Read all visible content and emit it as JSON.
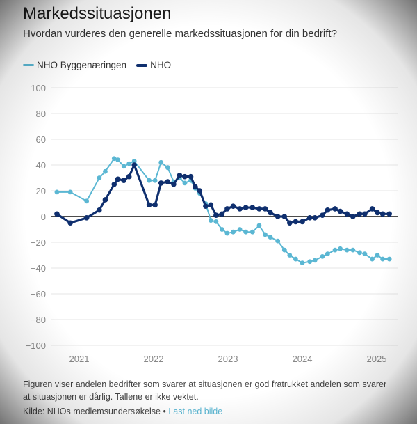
{
  "header": {
    "title": "Markedssituasjonen",
    "subtitle": "Hvordan vurderes den generelle markedssituasjonen for din bedrift?"
  },
  "footer": {
    "note": "Figuren viser andelen bedrifter som svarer at situasjonen er god fratrukket andelen som svarer at situasjonen er dårlig. Tallene er ikke vektet.",
    "source_label": "Kilde: NHOs medlemsundersøkelse",
    "separator": "•",
    "download_label": "Last ned bilde"
  },
  "chart_data": {
    "type": "line",
    "title": "Markedssituasjonen",
    "xlabel": "",
    "ylabel": "",
    "ylim": [
      -100,
      100
    ],
    "xlim": [
      2020.7,
      2025.25
    ],
    "yticks": [
      100,
      80,
      60,
      40,
      20,
      0,
      -20,
      -40,
      -60,
      -80,
      -100
    ],
    "ytick_labels": [
      "100",
      "80",
      "60",
      "40",
      "20",
      "0",
      "−20",
      "−40",
      "−60",
      "−80",
      "−100"
    ],
    "xticks": [
      2021,
      2022,
      2023,
      2024,
      2025
    ],
    "xtick_labels": [
      "2021",
      "2022",
      "2023",
      "2024",
      "2025"
    ],
    "grid": true,
    "legend": "top-left",
    "series": [
      {
        "name": "NHO Byggenæringen",
        "color": "#5bb7d3",
        "x": [
          2020.7,
          2020.88,
          2021.1,
          2021.27,
          2021.35,
          2021.47,
          2021.52,
          2021.6,
          2021.67,
          2021.74,
          2021.94,
          2022.02,
          2022.1,
          2022.19,
          2022.27,
          2022.35,
          2022.42,
          2022.5,
          2022.56,
          2022.62,
          2022.7,
          2022.77,
          2022.84,
          2022.92,
          2022.99,
          2023.07,
          2023.16,
          2023.24,
          2023.33,
          2023.42,
          2023.5,
          2023.57,
          2023.67,
          2023.76,
          2023.83,
          2023.91,
          2024.0,
          2024.1,
          2024.17,
          2024.27,
          2024.34,
          2024.44,
          2024.51,
          2024.6,
          2024.68,
          2024.77,
          2024.84,
          2024.94,
          2025.01,
          2025.08,
          2025.17
        ],
        "values": [
          19,
          19,
          12,
          30,
          35,
          45,
          44,
          39,
          41,
          43,
          28,
          28,
          42,
          38,
          27,
          30,
          26,
          28,
          22,
          18,
          10,
          -3,
          -4,
          -10,
          -13,
          -12,
          -10,
          -12,
          -12,
          -7,
          -14,
          -16,
          -19,
          -26,
          -30,
          -33,
          -36,
          -35,
          -34,
          -31,
          -29,
          -26,
          -25,
          -26,
          -26,
          -28,
          -29,
          -33,
          -30,
          -33,
          -33
        ]
      },
      {
        "name": "NHO",
        "color": "#0f2f6e",
        "x": [
          2020.7,
          2020.88,
          2021.1,
          2021.27,
          2021.35,
          2021.47,
          2021.52,
          2021.6,
          2021.67,
          2021.74,
          2021.94,
          2022.02,
          2022.1,
          2022.19,
          2022.27,
          2022.35,
          2022.42,
          2022.5,
          2022.56,
          2022.62,
          2022.7,
          2022.77,
          2022.84,
          2022.92,
          2022.99,
          2023.07,
          2023.16,
          2023.24,
          2023.33,
          2023.42,
          2023.5,
          2023.57,
          2023.67,
          2023.76,
          2023.83,
          2023.91,
          2024.0,
          2024.1,
          2024.17,
          2024.27,
          2024.34,
          2024.44,
          2024.51,
          2024.6,
          2024.68,
          2024.77,
          2024.84,
          2024.94,
          2025.01,
          2025.08,
          2025.17
        ],
        "values": [
          2,
          -5,
          -1,
          5,
          13,
          25,
          29,
          28,
          31,
          40,
          9,
          9,
          26,
          27,
          25,
          32,
          31,
          31,
          23,
          20,
          8,
          9,
          1,
          2,
          6,
          8,
          6,
          7,
          7,
          6,
          6,
          3,
          0,
          0,
          -5,
          -4,
          -4,
          -1,
          -1,
          1,
          5,
          6,
          4,
          2,
          0,
          2,
          2,
          6,
          3,
          2,
          2
        ]
      }
    ]
  }
}
